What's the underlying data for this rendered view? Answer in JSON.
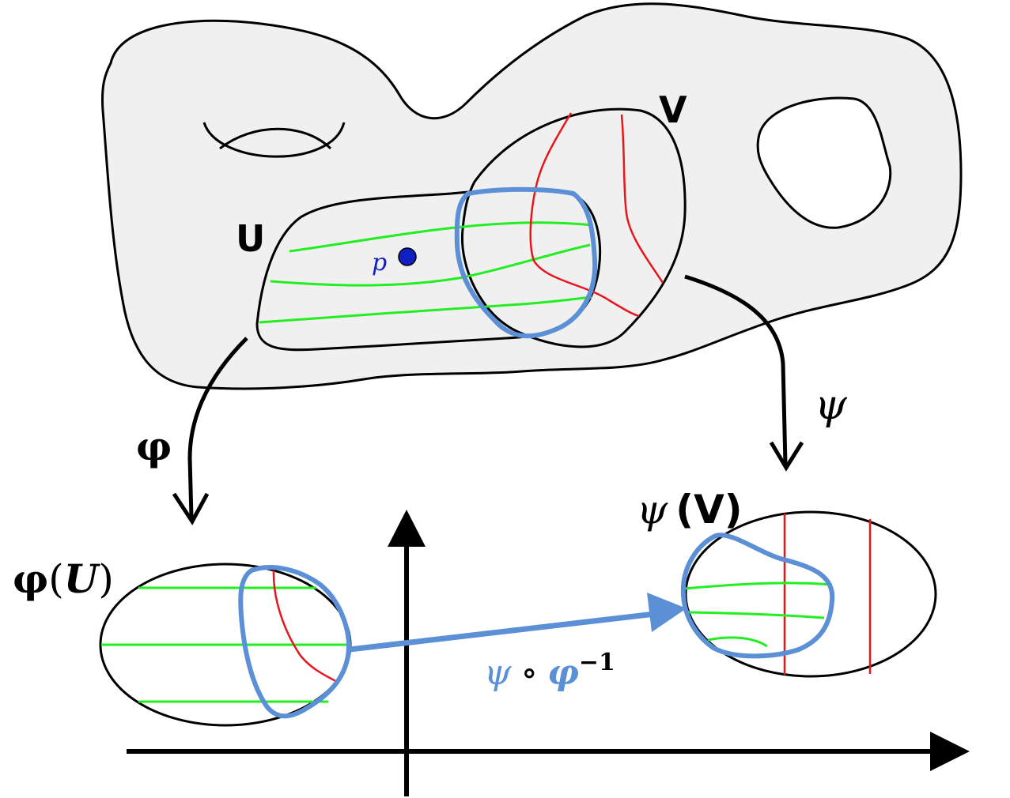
{
  "labels": {
    "U": "U",
    "V": "V",
    "p": "p",
    "phi": "φ",
    "psi": "ψ",
    "phi_U_sym": "φ",
    "phi_U_open": "(",
    "phi_U_var": "U",
    "phi_U_close": ")",
    "psi_V_sym": "ψ",
    "psi_V_rest": "(V)",
    "transition_psi": "ψ",
    "transition_circ": "∘",
    "transition_phi": "φ",
    "transition_exp": "−1"
  },
  "colors": {
    "manifold_fill": "#f0f0f0",
    "outline": "#000000",
    "green_curves": "#22ee22",
    "red_curves": "#e8151b",
    "overlap_blue": "#5b8fd6",
    "point_blue": "#1020c0"
  }
}
